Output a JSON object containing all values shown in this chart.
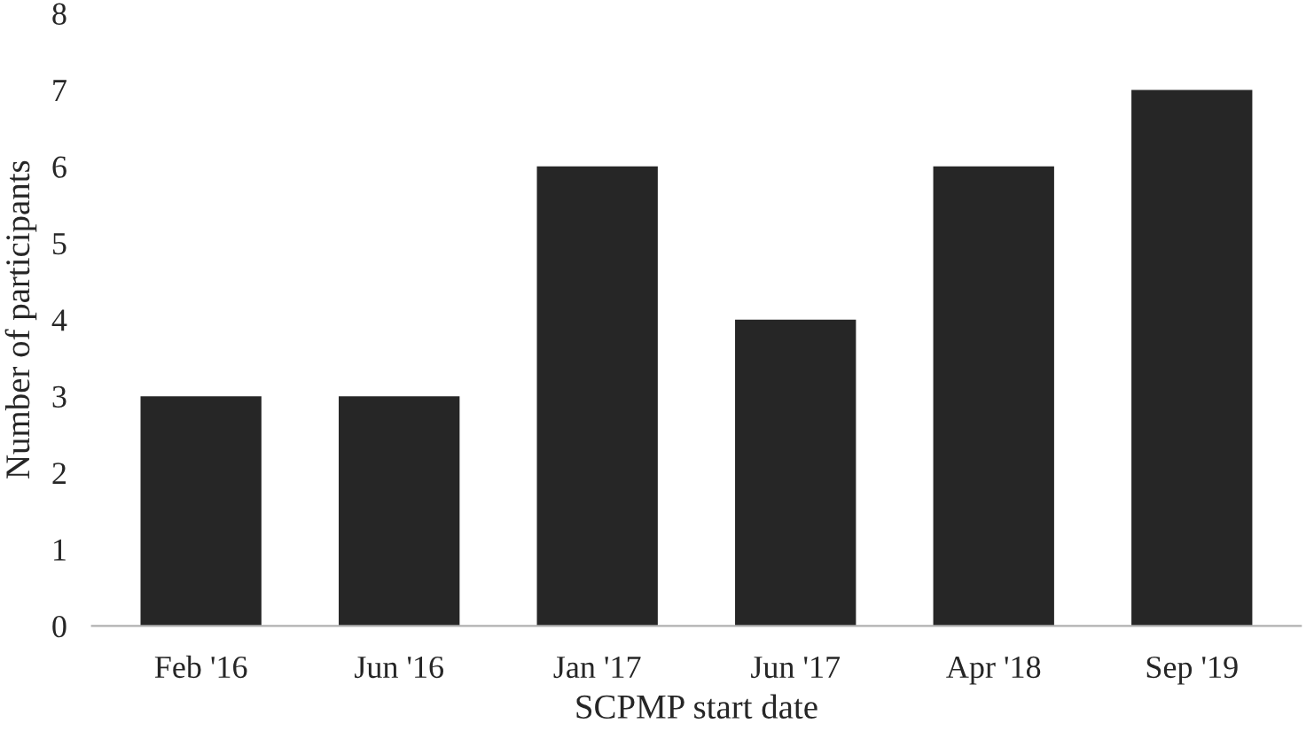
{
  "chart_data": {
    "type": "bar",
    "xlabel": "SCPMP start date",
    "ylabel": "Number of participants",
    "categories": [
      "Feb '16",
      "Jun '16",
      "Jan '17",
      "Jun '17",
      "Apr '18",
      "Sep '19"
    ],
    "values": [
      3,
      3,
      6,
      4,
      6,
      7
    ],
    "color": "#262626",
    "ylim": [
      0,
      8
    ],
    "yticks": [
      0,
      1,
      2,
      3,
      4,
      5,
      6,
      7,
      8
    ],
    "grid": false,
    "legend": false
  }
}
